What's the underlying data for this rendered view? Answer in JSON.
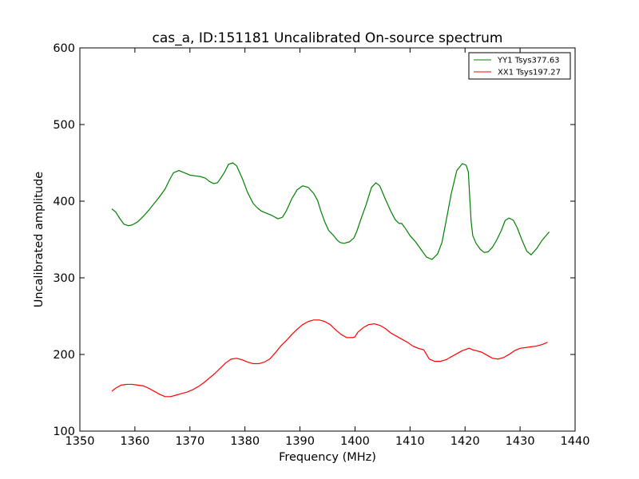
{
  "chart_data": {
    "type": "line",
    "title": "cas_a, ID:151181 Uncalibrated On-source spectrum",
    "xlabel": "Frequency (MHz)",
    "ylabel": "Uncalibrated amplitude",
    "xlim": [
      1350,
      1440
    ],
    "ylim": [
      100,
      600
    ],
    "xticks": [
      1350,
      1360,
      1370,
      1380,
      1390,
      1400,
      1410,
      1420,
      1430,
      1440
    ],
    "yticks": [
      100,
      200,
      300,
      400,
      500,
      600
    ],
    "grid": false,
    "legend_position": "top-right",
    "series": [
      {
        "name": "YY1 Tsys377.63",
        "color": "#008000",
        "x": [
          1355.8,
          1356.5,
          1357.2,
          1358.0,
          1358.8,
          1359.5,
          1360.5,
          1361.5,
          1362.5,
          1363.5,
          1364.5,
          1365.5,
          1366.3,
          1367.0,
          1368.0,
          1369.0,
          1370.0,
          1371.0,
          1372.0,
          1372.8,
          1373.5,
          1374.3,
          1375.0,
          1375.6,
          1376.3,
          1377.0,
          1377.8,
          1378.5,
          1379.5,
          1380.5,
          1381.5,
          1382.3,
          1383.0,
          1384.0,
          1385.0,
          1386.0,
          1386.8,
          1387.5,
          1388.5,
          1389.5,
          1390.5,
          1391.5,
          1392.5,
          1393.2,
          1393.8,
          1394.5,
          1395.2,
          1396.0,
          1396.8,
          1397.3,
          1398.0,
          1399.0,
          1399.8,
          1400.3,
          1401.0,
          1402.0,
          1403.0,
          1403.8,
          1404.5,
          1405.5,
          1406.5,
          1407.3,
          1408.0,
          1408.5,
          1409.2,
          1410.0,
          1411.0,
          1412.0,
          1413.0,
          1414.0,
          1415.0,
          1415.8,
          1416.5,
          1417.5,
          1418.5,
          1419.5,
          1420.2,
          1420.6,
          1420.85,
          1421.1,
          1421.4,
          1422.0,
          1422.8,
          1423.5,
          1424.2,
          1425.0,
          1425.8,
          1426.6,
          1427.3,
          1428.0,
          1428.8,
          1429.5,
          1430.3,
          1431.2,
          1432.0,
          1433.0,
          1434.0,
          1435.3
        ],
        "values": [
          390,
          386,
          378,
          370,
          368,
          369,
          373,
          380,
          388,
          397,
          406,
          416,
          428,
          437,
          440,
          437,
          434,
          433,
          432,
          430,
          426,
          423,
          424,
          430,
          438,
          448,
          450,
          446,
          430,
          411,
          397,
          391,
          387,
          384,
          381,
          377,
          379,
          387,
          403,
          415,
          420,
          418,
          410,
          401,
          387,
          373,
          362,
          356,
          349,
          346,
          345,
          347,
          352,
          360,
          375,
          395,
          418,
          424,
          420,
          403,
          387,
          376,
          371,
          371,
          364,
          355,
          347,
          337,
          327,
          324,
          331,
          346,
          372,
          410,
          440,
          449,
          447,
          438,
          405,
          374,
          355,
          345,
          337,
          333,
          334,
          340,
          350,
          362,
          375,
          378,
          375,
          365,
          350,
          335,
          330,
          338,
          349,
          360
        ]
      },
      {
        "name": "XX1 Tsys197.27",
        "color": "#ff0000",
        "x": [
          1355.8,
          1356.5,
          1357.5,
          1358.5,
          1359.5,
          1360.5,
          1361.5,
          1362.5,
          1363.5,
          1364.5,
          1365.5,
          1366.5,
          1367.5,
          1368.5,
          1369.5,
          1370.5,
          1371.5,
          1372.5,
          1373.5,
          1374.5,
          1375.5,
          1376.5,
          1377.5,
          1378.5,
          1379.5,
          1380.5,
          1381.5,
          1382.5,
          1383.5,
          1384.5,
          1385.5,
          1386.5,
          1387.5,
          1388.5,
          1389.5,
          1390.5,
          1391.5,
          1392.5,
          1393.5,
          1394.5,
          1395.5,
          1396.5,
          1397.5,
          1398.5,
          1399.5,
          1400.0,
          1400.5,
          1401.5,
          1402.5,
          1403.5,
          1404.5,
          1405.5,
          1406.5,
          1407.5,
          1408.5,
          1409.5,
          1410.5,
          1411.5,
          1412.5,
          1413.5,
          1414.5,
          1415.5,
          1416.5,
          1417.5,
          1418.5,
          1419.5,
          1420.3,
          1420.6,
          1420.85,
          1421.1,
          1421.4,
          1422.0,
          1423.0,
          1424.0,
          1425.0,
          1426.0,
          1427.0,
          1428.0,
          1429.0,
          1430.0,
          1431.0,
          1432.0,
          1433.0,
          1434.0,
          1435.0
        ],
        "values": [
          152,
          156,
          160,
          161,
          161,
          160,
          159,
          156,
          152,
          148,
          145,
          145,
          147,
          149,
          151,
          154,
          158,
          163,
          169,
          175,
          182,
          189,
          194,
          195,
          193,
          190,
          188,
          188,
          190,
          194,
          202,
          211,
          218,
          226,
          233,
          239,
          243,
          245,
          245,
          243,
          239,
          232,
          226,
          222,
          222,
          223,
          229,
          235,
          239,
          240,
          238,
          234,
          228,
          224,
          220,
          216,
          211,
          208,
          206,
          194,
          191,
          191,
          193,
          197,
          201,
          205,
          207,
          208,
          208,
          207,
          206,
          205,
          203,
          199,
          195,
          194,
          196,
          200,
          205,
          208,
          209,
          210,
          211,
          213,
          216
        ]
      }
    ]
  }
}
